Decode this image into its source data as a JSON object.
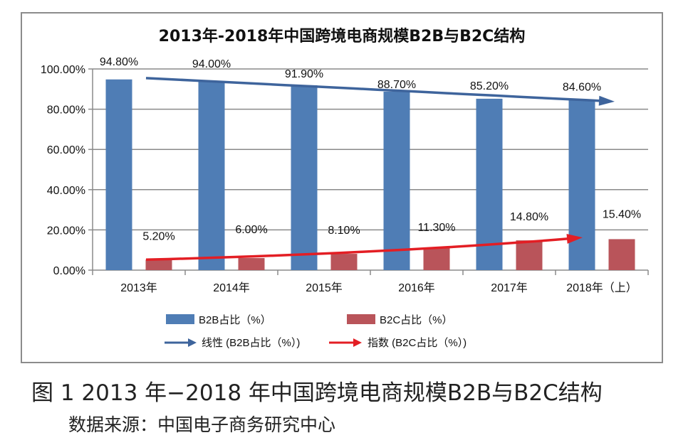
{
  "chart_data": {
    "type": "bar",
    "title": "2013年-2018年中国跨境电商规模B2B与B2C结构",
    "xlabel": "",
    "ylabel": "",
    "ylim": [
      0,
      100
    ],
    "yticks": [
      "0.00%",
      "20.00%",
      "40.00%",
      "60.00%",
      "80.00%",
      "100.00%"
    ],
    "grid": true,
    "categories": [
      "2013年",
      "2014年",
      "2015年",
      "2016年",
      "2017年",
      "2018年（上）"
    ],
    "series": [
      {
        "name": "B2B占比（%）",
        "color": "#4f7db5",
        "values": [
          94.8,
          94.0,
          91.9,
          88.7,
          85.2,
          84.6
        ],
        "labels": [
          "94.80%",
          "94.00%",
          "91.90%",
          "88.70%",
          "85.20%",
          "84.60%"
        ]
      },
      {
        "name": "B2C占比（%）",
        "color": "#b9545a",
        "values": [
          5.2,
          6.0,
          8.1,
          11.3,
          14.8,
          15.4
        ],
        "labels": [
          "5.20%",
          "6.00%",
          "8.10%",
          "11.30%",
          "14.80%",
          "15.40%"
        ]
      }
    ],
    "trendlines": [
      {
        "name": "线性 (B2B占比（%）)",
        "type": "linear",
        "of": "B2B占比（%）",
        "color": "#3e649c"
      },
      {
        "name": "指数 (B2C占比（%）)",
        "type": "exponential",
        "of": "B2C占比（%）",
        "color": "#e31e24"
      }
    ],
    "legend_position": "bottom"
  },
  "caption": "图 1 2013 年−2018 年中国跨境电商规模B2B与B2C结构",
  "source": "数据来源：中国电子商务研究中心"
}
